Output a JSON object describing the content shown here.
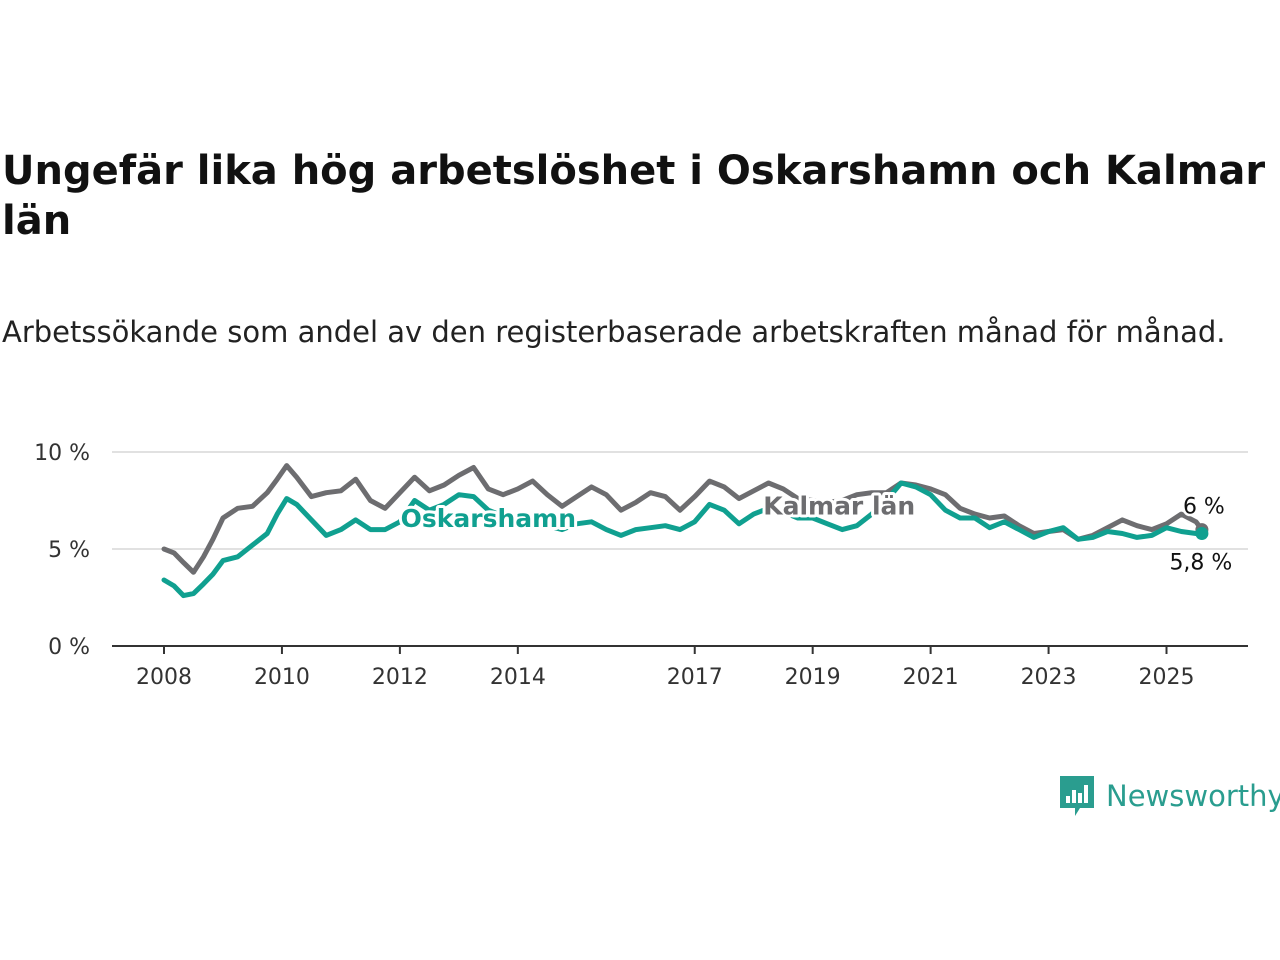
{
  "title": "Ungefär lika hög arbetslöshet i Oskarshamn och Kalmar län",
  "subtitle": "Arbetssökande som andel av den registerbaserade arbetskraften månad för månad.",
  "brand": {
    "name": "Newsworthy",
    "icon": "newsworthy-bar-chart-icon",
    "color": "#2a9d8f"
  },
  "colors": {
    "oskarshamn": "#10a090",
    "kalmar": "#6d6d70",
    "grid": "#d7d7d7",
    "axis": "#333333"
  },
  "chart_data": {
    "type": "line",
    "title": "Ungefär lika hög arbetslöshet i Oskarshamn och Kalmar län",
    "subtitle": "Arbetssökande som andel av den registerbaserade arbetskraften månad för månad.",
    "xlabel": "",
    "ylabel": "",
    "x_range": [
      2007.85,
      2025.8
    ],
    "ylim": [
      0,
      10
    ],
    "yticks": [
      0,
      5,
      10
    ],
    "ytick_labels": [
      "0 %",
      "5 %",
      "10 %"
    ],
    "xticks": [
      2008,
      2010,
      2012,
      2014,
      2017,
      2019,
      2021,
      2023,
      2025
    ],
    "xtick_labels": [
      "2008",
      "2010",
      "2012",
      "2014",
      "2017",
      "2019",
      "2021",
      "2023",
      "2025"
    ],
    "grid": "horizontal",
    "legend": "inline labels",
    "series": [
      {
        "name": "Kalmar län",
        "color": "#6d6d70",
        "end_label": "6 %",
        "points": [
          [
            2008.0,
            5.0
          ],
          [
            2008.17,
            4.8
          ],
          [
            2008.33,
            4.3
          ],
          [
            2008.5,
            3.8
          ],
          [
            2008.67,
            4.6
          ],
          [
            2008.83,
            5.5
          ],
          [
            2009.0,
            6.6
          ],
          [
            2009.25,
            7.1
          ],
          [
            2009.5,
            7.2
          ],
          [
            2009.75,
            7.9
          ],
          [
            2009.92,
            8.6
          ],
          [
            2010.08,
            9.3
          ],
          [
            2010.25,
            8.7
          ],
          [
            2010.5,
            7.7
          ],
          [
            2010.75,
            7.9
          ],
          [
            2011.0,
            8.0
          ],
          [
            2011.25,
            8.6
          ],
          [
            2011.5,
            7.5
          ],
          [
            2011.75,
            7.1
          ],
          [
            2012.0,
            7.9
          ],
          [
            2012.25,
            8.7
          ],
          [
            2012.5,
            8.0
          ],
          [
            2012.75,
            8.3
          ],
          [
            2013.0,
            8.8
          ],
          [
            2013.25,
            9.2
          ],
          [
            2013.5,
            8.1
          ],
          [
            2013.75,
            7.8
          ],
          [
            2014.0,
            8.1
          ],
          [
            2014.25,
            8.5
          ],
          [
            2014.5,
            7.8
          ],
          [
            2014.75,
            7.2
          ],
          [
            2015.0,
            7.7
          ],
          [
            2015.25,
            8.2
          ],
          [
            2015.5,
            7.8
          ],
          [
            2015.75,
            7.0
          ],
          [
            2016.0,
            7.4
          ],
          [
            2016.25,
            7.9
          ],
          [
            2016.5,
            7.7
          ],
          [
            2016.75,
            7.0
          ],
          [
            2017.0,
            7.7
          ],
          [
            2017.25,
            8.5
          ],
          [
            2017.5,
            8.2
          ],
          [
            2017.75,
            7.6
          ],
          [
            2018.0,
            8.0
          ],
          [
            2018.25,
            8.4
          ],
          [
            2018.5,
            8.1
          ],
          [
            2018.75,
            7.6
          ],
          [
            2019.0,
            7.5
          ],
          [
            2019.25,
            7.4
          ],
          [
            2019.5,
            7.5
          ],
          [
            2019.75,
            7.8
          ],
          [
            2020.0,
            7.9
          ],
          [
            2020.25,
            7.9
          ],
          [
            2020.5,
            8.4
          ],
          [
            2020.75,
            8.3
          ],
          [
            2021.0,
            8.1
          ],
          [
            2021.25,
            7.8
          ],
          [
            2021.5,
            7.1
          ],
          [
            2021.75,
            6.8
          ],
          [
            2022.0,
            6.6
          ],
          [
            2022.25,
            6.7
          ],
          [
            2022.5,
            6.2
          ],
          [
            2022.75,
            5.8
          ],
          [
            2023.0,
            5.9
          ],
          [
            2023.25,
            6.0
          ],
          [
            2023.5,
            5.5
          ],
          [
            2023.75,
            5.7
          ],
          [
            2024.0,
            6.1
          ],
          [
            2024.25,
            6.5
          ],
          [
            2024.5,
            6.2
          ],
          [
            2024.75,
            6.0
          ],
          [
            2025.0,
            6.3
          ],
          [
            2025.25,
            6.8
          ],
          [
            2025.5,
            6.4
          ],
          [
            2025.6,
            6.0
          ]
        ]
      },
      {
        "name": "Oskarshamn",
        "color": "#10a090",
        "end_label": "5,8 %",
        "points": [
          [
            2008.0,
            3.4
          ],
          [
            2008.17,
            3.1
          ],
          [
            2008.33,
            2.6
          ],
          [
            2008.5,
            2.7
          ],
          [
            2008.67,
            3.2
          ],
          [
            2008.83,
            3.7
          ],
          [
            2009.0,
            4.4
          ],
          [
            2009.25,
            4.6
          ],
          [
            2009.5,
            5.2
          ],
          [
            2009.75,
            5.8
          ],
          [
            2009.92,
            6.8
          ],
          [
            2010.08,
            7.6
          ],
          [
            2010.25,
            7.3
          ],
          [
            2010.5,
            6.5
          ],
          [
            2010.75,
            5.7
          ],
          [
            2011.0,
            6.0
          ],
          [
            2011.25,
            6.5
          ],
          [
            2011.5,
            6.0
          ],
          [
            2011.75,
            6.0
          ],
          [
            2012.0,
            6.4
          ],
          [
            2012.25,
            7.5
          ],
          [
            2012.5,
            7.0
          ],
          [
            2012.75,
            7.3
          ],
          [
            2013.0,
            7.8
          ],
          [
            2013.25,
            7.7
          ],
          [
            2013.5,
            7.0
          ],
          [
            2013.75,
            6.7
          ],
          [
            2014.0,
            6.6
          ],
          [
            2014.25,
            6.5
          ],
          [
            2014.5,
            6.2
          ],
          [
            2014.75,
            6.0
          ],
          [
            2015.0,
            6.3
          ],
          [
            2015.25,
            6.4
          ],
          [
            2015.5,
            6.0
          ],
          [
            2015.75,
            5.7
          ],
          [
            2016.0,
            6.0
          ],
          [
            2016.25,
            6.1
          ],
          [
            2016.5,
            6.2
          ],
          [
            2016.75,
            6.0
          ],
          [
            2017.0,
            6.4
          ],
          [
            2017.25,
            7.3
          ],
          [
            2017.5,
            7.0
          ],
          [
            2017.75,
            6.3
          ],
          [
            2018.0,
            6.8
          ],
          [
            2018.25,
            7.1
          ],
          [
            2018.5,
            6.9
          ],
          [
            2018.75,
            6.6
          ],
          [
            2019.0,
            6.6
          ],
          [
            2019.25,
            6.3
          ],
          [
            2019.5,
            6.0
          ],
          [
            2019.75,
            6.2
          ],
          [
            2020.0,
            6.8
          ],
          [
            2020.25,
            7.5
          ],
          [
            2020.5,
            8.4
          ],
          [
            2020.75,
            8.2
          ],
          [
            2021.0,
            7.8
          ],
          [
            2021.25,
            7.0
          ],
          [
            2021.5,
            6.6
          ],
          [
            2021.75,
            6.6
          ],
          [
            2022.0,
            6.1
          ],
          [
            2022.25,
            6.4
          ],
          [
            2022.5,
            6.0
          ],
          [
            2022.75,
            5.6
          ],
          [
            2023.0,
            5.9
          ],
          [
            2023.25,
            6.1
          ],
          [
            2023.5,
            5.5
          ],
          [
            2023.75,
            5.6
          ],
          [
            2024.0,
            5.9
          ],
          [
            2024.25,
            5.8
          ],
          [
            2024.5,
            5.6
          ],
          [
            2024.75,
            5.7
          ],
          [
            2025.0,
            6.1
          ],
          [
            2025.25,
            5.9
          ],
          [
            2025.5,
            5.8
          ],
          [
            2025.6,
            5.8
          ]
        ]
      }
    ],
    "inline_labels": [
      {
        "series": "Oskarshamn",
        "text": "Oskarshamn",
        "x": 2013.5,
        "y": 6.6
      },
      {
        "series": "Kalmar län",
        "text": "Kalmar län",
        "x": 2019.45,
        "y": 7.25
      }
    ]
  }
}
